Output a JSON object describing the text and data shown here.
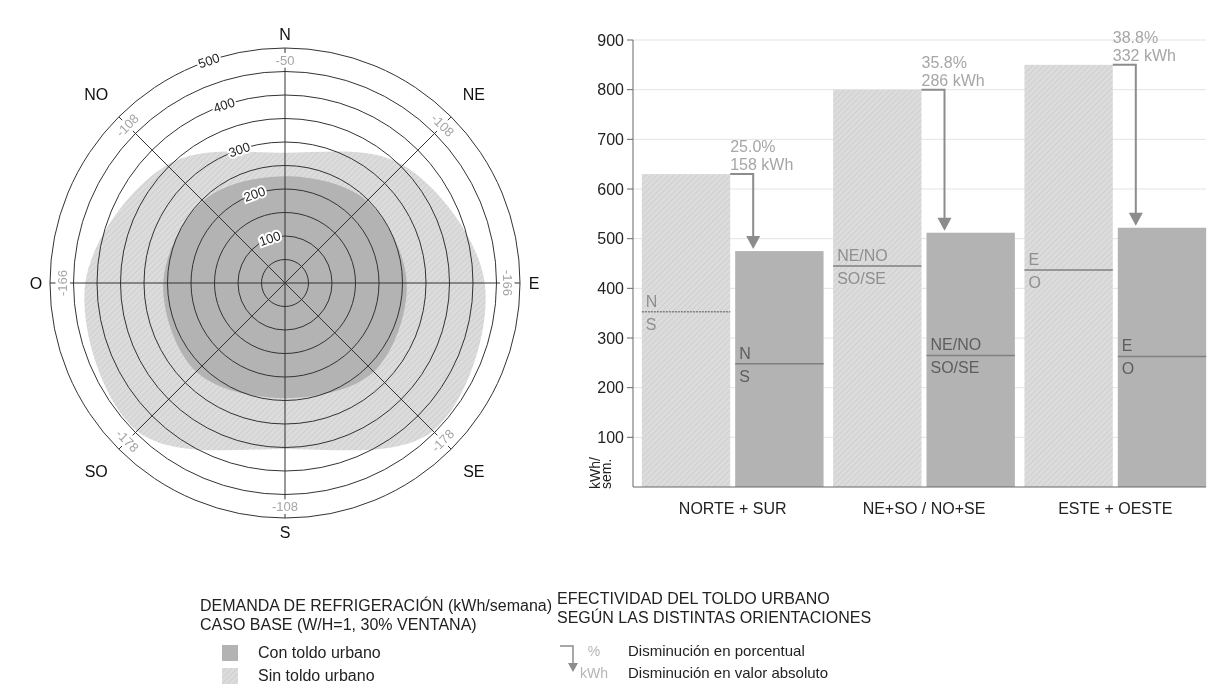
{
  "chart_data": [
    {
      "type": "radar",
      "title": "DEMANDA DE REFRIGERACIÓN (kWh/semana)",
      "subtitle": "CASO BASE (W/H=1, 30% VENTANA)",
      "categories": [
        "N",
        "NE",
        "E",
        "SE",
        "S",
        "SO",
        "O",
        "NO"
      ],
      "series": [
        {
          "name": "Con toldo urbano",
          "color": "#b3b3b3",
          "values": [
            227,
            247,
            259,
            267,
            245,
            267,
            259,
            247
          ]
        },
        {
          "name": "Sin toldo urbano",
          "color": "#dcdcdc",
          "values": [
            277,
            355,
            425,
            445,
            353,
            445,
            425,
            355
          ]
        }
      ],
      "ylim": [
        0,
        500
      ],
      "yticks": [
        100,
        200,
        300,
        400,
        500
      ],
      "grid": true,
      "legend": "bottom",
      "annotations": [
        "-50",
        "-108",
        "-166",
        "-178",
        "-108",
        "-178",
        "-166",
        "-108"
      ]
    },
    {
      "type": "bar",
      "title": "EFECTIVIDAD DEL TOLDO URBANO",
      "subtitle": "SEGÚN LAS DISTINTAS ORIENTACIONES",
      "ylabel": "kWh/\nsem.",
      "categories": [
        "NORTE + SUR",
        "NE+SO / NO+SE",
        "ESTE + OESTE"
      ],
      "series": [
        {
          "color": "#dcdcdc",
          "values": [
            630,
            800,
            850
          ]
        },
        {
          "color": "#b3b3b3",
          "values": [
            475,
            512,
            522
          ]
        }
      ],
      "ylim": [
        0,
        900
      ],
      "yticks": [
        100,
        200,
        300,
        400,
        500,
        600,
        700,
        800,
        900
      ],
      "grid": "y",
      "annotations": [
        {
          "text": "25.0%\n158 kWh",
          "x": "NORTE + SUR",
          "y": 630
        },
        {
          "text": "35.8%\n286 kWh",
          "x": "NE+SO / NO+SE",
          "y": 800
        },
        {
          "text": "38.8%\n332 kWh",
          "x": "ESTE + OESTE",
          "y": 850
        },
        {
          "text": "N",
          "x": "NORTE + SUR",
          "y": 353
        },
        {
          "text": "S",
          "x": "NORTE + SUR",
          "y": 353
        },
        {
          "text": "N",
          "x": "NORTE + SUR",
          "y": 248
        },
        {
          "text": "S",
          "x": "NORTE + SUR",
          "y": 248
        },
        {
          "text": "NE/NO",
          "x": "NE+SO / NO+SE",
          "y": 445
        },
        {
          "text": "SO/SE",
          "x": "NE+SO / NO+SE",
          "y": 445
        },
        {
          "text": "NE/NO",
          "x": "NE+SO / NO+SE",
          "y": 265
        },
        {
          "text": "SO/SE",
          "x": "NE+SO / NO+SE",
          "y": 265
        },
        {
          "text": "E",
          "x": "ESTE + OESTE",
          "y": 437
        },
        {
          "text": "O",
          "x": "ESTE + OESTE",
          "y": 437
        },
        {
          "text": "E",
          "x": "ESTE + OESTE",
          "y": 263
        },
        {
          "text": "O",
          "x": "ESTE + OESTE",
          "y": 263
        },
        "%",
        "kWh",
        "Disminución en porcentual",
        "Disminución en valor absoluto"
      ]
    }
  ]
}
